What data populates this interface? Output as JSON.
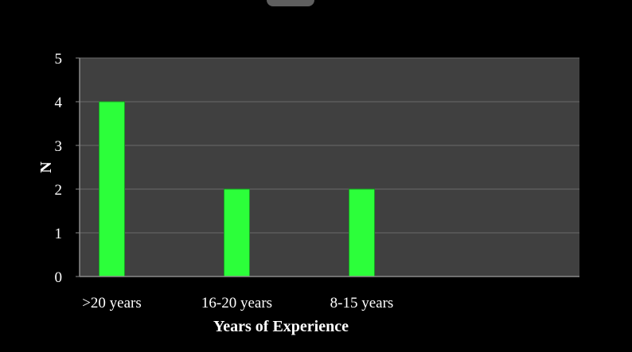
{
  "chart_data": {
    "type": "bar",
    "title": "",
    "xlabel": "Years of Experience",
    "ylabel": "N",
    "categories": [
      ">20 years",
      "16-20 years",
      "8-15 years",
      ""
    ],
    "values": [
      4,
      2,
      2,
      null
    ],
    "ylim": [
      0,
      5
    ],
    "yticks": [
      "0",
      "1",
      "2",
      "3",
      "4",
      "5"
    ],
    "grid": true,
    "legend": "none",
    "colors": {
      "bar": "#2cff3a",
      "bar_edge": "#1a9e24",
      "plot_bg": "#404040",
      "page_bg": "#000000",
      "grid": "#6a6a6a",
      "text": "#ffffff"
    }
  }
}
